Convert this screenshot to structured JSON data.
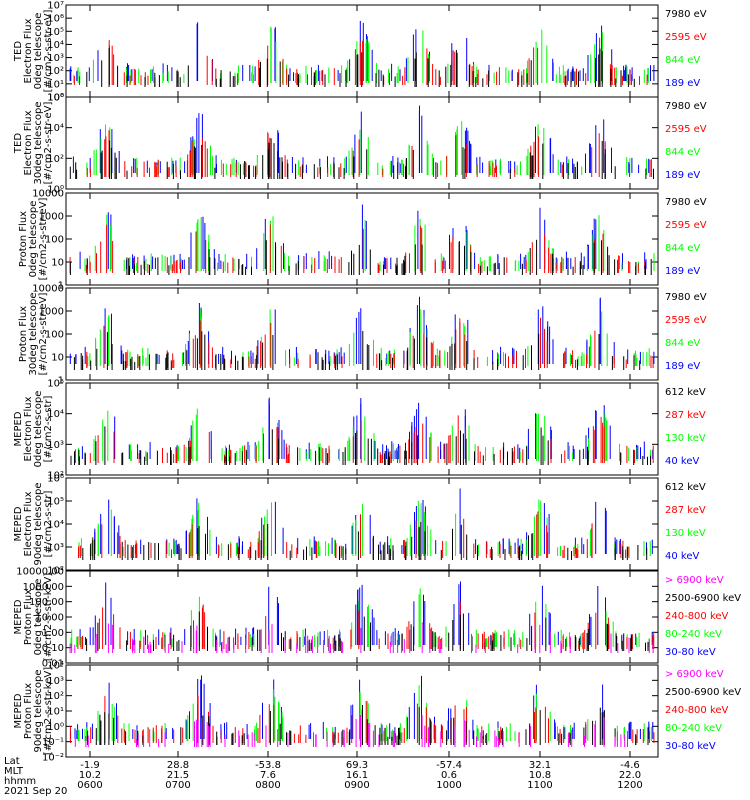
{
  "chart_data": {
    "type": "scatter",
    "x_ticks": {
      "lat": [
        "-1.9",
        "28.8",
        "-53.8",
        "69.3",
        "-57.4",
        "32.1",
        "-4.6"
      ],
      "mlt": [
        "10.2",
        "21.5",
        "7.6",
        "16.1",
        "0.6",
        "10.8",
        "22.0"
      ],
      "hhmm": [
        "0600",
        "0700",
        "0800",
        "0900",
        "1000",
        "1100",
        "1200"
      ]
    },
    "footer": {
      "lat_label": "Lat",
      "mlt_label": "MLT",
      "hhmm_label": "hhmm",
      "date": "2021 Sep 20"
    },
    "colors": {
      "black": "#000000",
      "red": "#ff0000",
      "green": "#00ff00",
      "blue": "#0000ff",
      "magenta": "#ff00ff"
    },
    "panels": [
      {
        "ylabel": [
          "TED",
          "Electron Flux",
          "0deg telescope",
          "[#/cm2-s-str-eV]"
        ],
        "scale": "log",
        "yticks": [
          "10⁰",
          "10¹",
          "10²",
          "10³",
          "10⁴",
          "10⁵",
          "10⁶",
          "10⁷"
        ],
        "legend": [
          {
            "label": "7980 eV",
            "color": "#000000"
          },
          {
            "label": "2595 eV",
            "color": "#ff0000"
          },
          {
            "label": "844 eV",
            "color": "#00ff00"
          },
          {
            "label": "189 eV",
            "color": "#0000ff"
          }
        ]
      },
      {
        "ylabel": [
          "TED",
          "Electron Flux",
          "30deg telescope",
          "[#/cm2-s-str-eV]"
        ],
        "scale": "log",
        "yticks": [
          "10⁰",
          "10²",
          "10⁴",
          "10⁶"
        ],
        "legend": [
          {
            "label": "7980 eV",
            "color": "#000000"
          },
          {
            "label": "2595 eV",
            "color": "#ff0000"
          },
          {
            "label": "844 eV",
            "color": "#00ff00"
          },
          {
            "label": "189 eV",
            "color": "#0000ff"
          }
        ]
      },
      {
        "ylabel": [
          "Proton Flux",
          "0deg telescope",
          "[#/cm2-s-str-eV]"
        ],
        "scale": "log",
        "yticks": [
          "1",
          "10",
          "100",
          "1000",
          "10000"
        ],
        "legend": [
          {
            "label": "7980 eV",
            "color": "#000000"
          },
          {
            "label": "2595 eV",
            "color": "#ff0000"
          },
          {
            "label": "844 eV",
            "color": "#00ff00"
          },
          {
            "label": "189 eV",
            "color": "#0000ff"
          }
        ]
      },
      {
        "ylabel": [
          "Proton Flux",
          "30deg telescope",
          "[#/cm2-s-str-eV]"
        ],
        "scale": "log",
        "yticks": [
          "1",
          "10",
          "100",
          "1000",
          "10000"
        ],
        "legend": [
          {
            "label": "7980 eV",
            "color": "#000000"
          },
          {
            "label": "2595 eV",
            "color": "#ff0000"
          },
          {
            "label": "844 eV",
            "color": "#00ff00"
          },
          {
            "label": "189 eV",
            "color": "#0000ff"
          }
        ]
      },
      {
        "ylabel": [
          "MEPED",
          "Electron Flux",
          "0deg telescope",
          "[#/cm2-s-str]"
        ],
        "scale": "log",
        "yticks": [
          "10²",
          "10³",
          "10⁴",
          "10⁵"
        ],
        "legend": [
          {
            "label": "612 keV",
            "color": "#000000"
          },
          {
            "label": "287 keV",
            "color": "#ff0000"
          },
          {
            "label": "130 keV",
            "color": "#00ff00"
          },
          {
            "label": "40 keV",
            "color": "#0000ff"
          }
        ]
      },
      {
        "ylabel": [
          "MEPED",
          "Electron Flux",
          "90deg telescope",
          "[#/cm2-s-str]"
        ],
        "scale": "log",
        "yticks": [
          "10²",
          "10³",
          "10⁴",
          "10⁵",
          "10⁶"
        ],
        "legend": [
          {
            "label": "612 keV",
            "color": "#000000"
          },
          {
            "label": "287 keV",
            "color": "#ff0000"
          },
          {
            "label": "130 keV",
            "color": "#00ff00"
          },
          {
            "label": "40 keV",
            "color": "#0000ff"
          }
        ]
      },
      {
        "ylabel": [
          "MEPED",
          "Proton Flux",
          "0deg telescope",
          "[#/cm2-s-str-keV]"
        ],
        "scale": "log",
        "yticks": [
          "0.01",
          "0.10",
          "1.00",
          "10.00",
          "100.00",
          "1000.00",
          "10000.00"
        ],
        "legend": [
          {
            "label": "> 6900 keV",
            "color": "#ff00ff"
          },
          {
            "label": "2500-6900 keV",
            "color": "#000000"
          },
          {
            "label": "240-800 keV",
            "color": "#ff0000"
          },
          {
            "label": "80-240 keV",
            "color": "#00ff00"
          },
          {
            "label": "30-80 keV",
            "color": "#0000ff"
          }
        ]
      },
      {
        "ylabel": [
          "MEPED",
          "Proton Flux",
          "90deg telescope",
          "[#/cm2-s-str-keV]"
        ],
        "scale": "log",
        "yticks": [
          "10⁻²",
          "10⁻¹",
          "10⁰",
          "10¹",
          "10²",
          "10³",
          "10⁴"
        ],
        "legend": [
          {
            "label": "> 6900 keV",
            "color": "#ff00ff"
          },
          {
            "label": "2500-6900 keV",
            "color": "#000000"
          },
          {
            "label": "240-800 keV",
            "color": "#ff0000"
          },
          {
            "label": "80-240 keV",
            "color": "#00ff00"
          },
          {
            "label": "30-80 keV",
            "color": "#0000ff"
          }
        ]
      }
    ]
  }
}
